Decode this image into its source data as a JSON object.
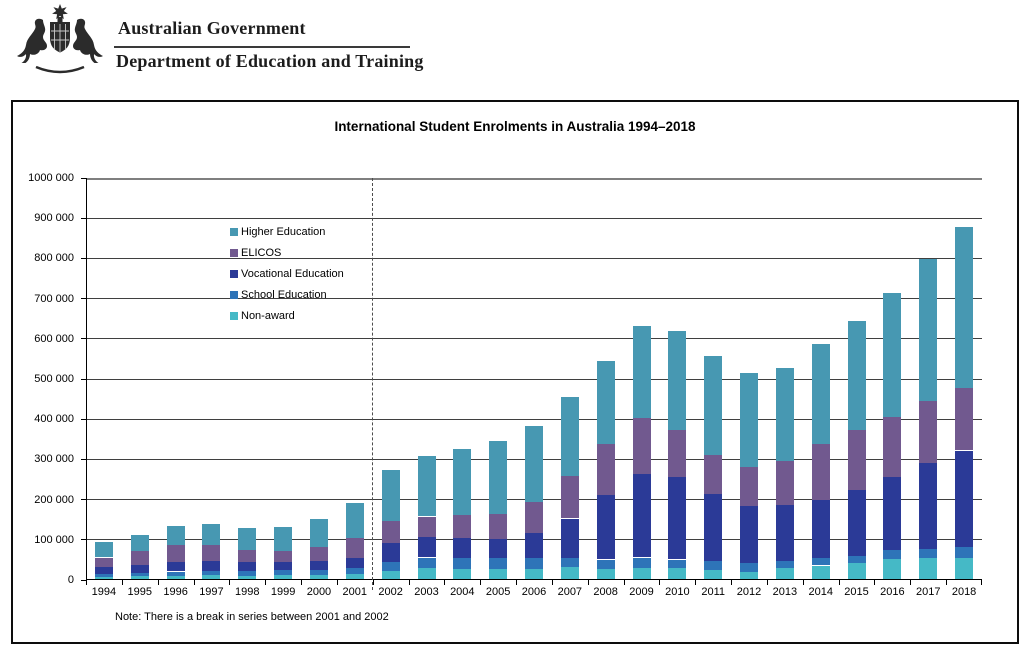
{
  "header": {
    "line1": "Australian Government",
    "line2": "Department of Education and Training"
  },
  "chart_data": {
    "type": "bar",
    "stacked": true,
    "title": "International Student Enrolments in Australia 1994–2018",
    "note": "Note: There is a break in series between 2001 and 2002",
    "legend_position": "upper-left-inside",
    "grid": true,
    "ylim": [
      0,
      1000000
    ],
    "y_tick_step": 100000,
    "y_tick_labels": [
      "0",
      "100 000",
      "200 000",
      "300 000",
      "400 000",
      "500 000",
      "600 000",
      "700 000",
      "800 000",
      "900 000",
      "1000 000"
    ],
    "break_between": [
      "2001",
      "2002"
    ],
    "categories": [
      "1994",
      "1995",
      "1996",
      "1997",
      "1998",
      "1999",
      "2000",
      "2001",
      "2002",
      "2003",
      "2004",
      "2005",
      "2006",
      "2007",
      "2008",
      "2009",
      "2010",
      "2011",
      "2012",
      "2013",
      "2014",
      "2015",
      "2016",
      "2017",
      "2018"
    ],
    "stack_bottom_to_top": [
      "Non-award",
      "School Education",
      "Vocational Education",
      "ELICOS",
      "Higher Education"
    ],
    "series": [
      {
        "name": "Higher Education",
        "color": "#4798B2",
        "values": [
          39000,
          41000,
          48000,
          52000,
          55000,
          61000,
          72000,
          87000,
          127000,
          151000,
          165000,
          180000,
          189000,
          197000,
          206000,
          229000,
          246000,
          246000,
          235000,
          231000,
          250000,
          272000,
          307000,
          354000,
          399000
        ]
      },
      {
        "name": "ELICOS",
        "color": "#71598F",
        "values": [
          23000,
          35000,
          43000,
          41000,
          30000,
          28000,
          33000,
          50000,
          56000,
          52000,
          56000,
          63000,
          79000,
          105000,
          127000,
          139000,
          117000,
          96000,
          96000,
          110000,
          138000,
          149000,
          149000,
          155000,
          156000
        ]
      },
      {
        "name": "Vocational Education",
        "color": "#2B3A97",
        "values": [
          18000,
          19000,
          23000,
          25000,
          22000,
          20000,
          23000,
          25000,
          47000,
          50000,
          50000,
          48000,
          62000,
          99000,
          160000,
          208000,
          205000,
          168000,
          143000,
          139000,
          146000,
          163000,
          182000,
          212000,
          240000
        ]
      },
      {
        "name": "School Education",
        "color": "#2E74B8",
        "values": [
          7000,
          8000,
          10000,
          10000,
          12000,
          12000,
          13000,
          14000,
          22000,
          26000,
          27000,
          26000,
          26000,
          22000,
          23000,
          25000,
          22000,
          23000,
          22000,
          18000,
          18000,
          19000,
          22000,
          23000,
          26000
        ]
      },
      {
        "name": "Non-award",
        "color": "#45B9C6",
        "values": [
          8000,
          10000,
          11000,
          12000,
          11000,
          12000,
          12000,
          15000,
          22000,
          30000,
          28000,
          28000,
          28000,
          32000,
          28000,
          31000,
          29000,
          24000,
          20000,
          29000,
          36000,
          42000,
          53000,
          55000,
          56000
        ]
      }
    ]
  }
}
